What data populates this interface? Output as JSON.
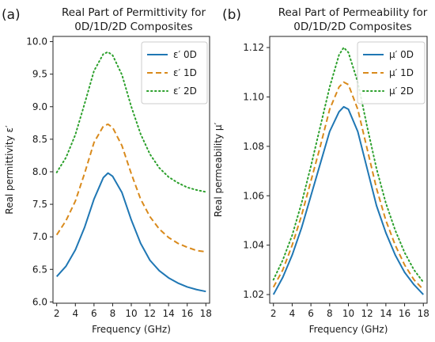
{
  "colors": {
    "series_0D": "#1f77b4",
    "series_1D": "#d98a1c",
    "series_2D": "#2ca02c"
  },
  "chart_data": [
    {
      "type": "line",
      "panel_label": "(a)",
      "title_lines": [
        "Real Part of Permittivity for",
        "0D/1D/2D Composites"
      ],
      "xlabel": "Frequency (GHz)",
      "ylabel": "Real permittivity ε′",
      "xlim": [
        1.6,
        18.4
      ],
      "ylim": [
        5.98,
        10.08
      ],
      "xticks": [
        2,
        4,
        6,
        8,
        10,
        12,
        14,
        16,
        18
      ],
      "yticks": [
        6.0,
        6.5,
        7.0,
        7.5,
        8.0,
        8.5,
        9.0,
        9.5,
        10.0
      ],
      "ytick_labels": [
        "6.0",
        "6.5",
        "7.0",
        "7.5",
        "8.0",
        "8.5",
        "9.0",
        "9.5",
        "10.0"
      ],
      "legend_position": "top-right",
      "grid": false,
      "x": [
        2,
        3,
        4,
        5,
        6,
        7,
        7.5,
        8,
        9,
        10,
        11,
        12,
        13,
        14,
        15,
        16,
        17,
        18
      ],
      "series": [
        {
          "name": "ε′ 0D",
          "style": "solid",
          "color_key": "series_0D",
          "values": [
            6.39,
            6.55,
            6.8,
            7.15,
            7.58,
            7.91,
            7.98,
            7.93,
            7.68,
            7.26,
            6.9,
            6.64,
            6.48,
            6.37,
            6.29,
            6.23,
            6.19,
            6.16
          ]
        },
        {
          "name": "ε′ 1D",
          "style": "dashed",
          "color_key": "series_1D",
          "values": [
            7.03,
            7.25,
            7.55,
            7.98,
            8.45,
            8.7,
            8.73,
            8.68,
            8.4,
            7.97,
            7.58,
            7.31,
            7.12,
            6.99,
            6.9,
            6.84,
            6.79,
            6.77
          ]
        },
        {
          "name": "ε′ 2D",
          "style": "dotted",
          "color_key": "series_2D",
          "values": [
            7.99,
            8.22,
            8.57,
            9.05,
            9.55,
            9.81,
            9.84,
            9.79,
            9.49,
            9.0,
            8.58,
            8.27,
            8.06,
            7.92,
            7.83,
            7.76,
            7.72,
            7.69
          ]
        }
      ]
    },
    {
      "type": "line",
      "panel_label": "(b)",
      "title_lines": [
        "Real Part of Permeability for",
        "0D/1D/2D Composites"
      ],
      "xlabel": "Frequency (GHz)",
      "ylabel": "Real permeability μ′",
      "xlim": [
        1.6,
        18.4
      ],
      "ylim": [
        1.0165,
        1.1245
      ],
      "xticks": [
        2,
        4,
        6,
        8,
        10,
        12,
        14,
        16,
        18
      ],
      "yticks": [
        1.02,
        1.04,
        1.06,
        1.08,
        1.1,
        1.12
      ],
      "ytick_labels": [
        "1.02",
        "1.04",
        "1.06",
        "1.08",
        "1.10",
        "1.12"
      ],
      "legend_position": "top-right",
      "grid": false,
      "x": [
        2,
        3,
        4,
        5,
        6,
        7,
        8,
        9,
        9.5,
        10,
        11,
        12,
        13,
        14,
        15,
        16,
        17,
        18
      ],
      "series": [
        {
          "name": "μ′ 0D",
          "style": "solid",
          "color_key": "series_0D",
          "values": [
            1.02,
            1.027,
            1.036,
            1.047,
            1.06,
            1.073,
            1.086,
            1.094,
            1.096,
            1.095,
            1.086,
            1.071,
            1.056,
            1.045,
            1.036,
            1.029,
            1.024,
            1.02
          ]
        },
        {
          "name": "μ′ 1D",
          "style": "dashed",
          "color_key": "series_1D",
          "values": [
            1.023,
            1.03,
            1.04,
            1.052,
            1.066,
            1.08,
            1.095,
            1.104,
            1.106,
            1.105,
            1.095,
            1.079,
            1.063,
            1.05,
            1.04,
            1.032,
            1.026,
            1.022
          ]
        },
        {
          "name": "μ′ 2D",
          "style": "dotted",
          "color_key": "series_2D",
          "values": [
            1.026,
            1.034,
            1.044,
            1.057,
            1.072,
            1.088,
            1.104,
            1.117,
            1.12,
            1.118,
            1.106,
            1.088,
            1.071,
            1.057,
            1.046,
            1.037,
            1.03,
            1.025
          ]
        }
      ]
    }
  ]
}
